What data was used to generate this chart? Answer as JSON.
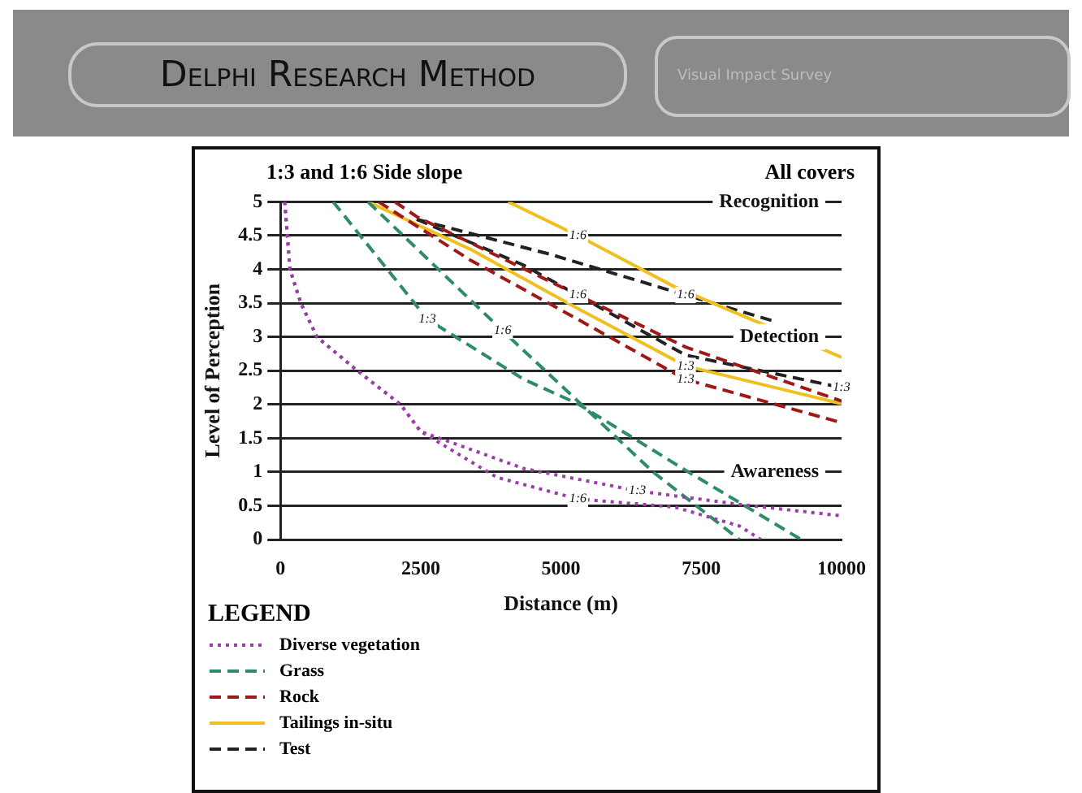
{
  "chart_data": {
    "type": "line",
    "title": "Delphi Research Method",
    "subtitle": "1:3 and 1:6 Side slope",
    "xlabel": "Distance (m)",
    "ylabel": "Level of Perception",
    "legend_title": "LEGEND",
    "legend": "bottom left",
    "grid": "y",
    "marker": "none",
    "xlim": [
      0,
      10000
    ],
    "xticks": [
      0,
      2500,
      5000,
      7500,
      10000
    ],
    "ylim": [
      0,
      5
    ],
    "yticks": [
      0,
      0.5,
      1,
      1.5,
      2,
      2.5,
      3,
      3.5,
      4,
      4.5,
      5
    ],
    "annotations": [
      "Visual Impact Survey",
      "All covers",
      "Recognition",
      "Detection",
      "Awareness",
      {
        "text": "1:6",
        "x": 5300,
        "y": 4.5
      },
      {
        "text": "1:6",
        "x": 7220,
        "y": 3.62
      },
      {
        "text": "1:6",
        "x": 5300,
        "y": 3.62
      },
      {
        "text": "1:3",
        "x": 7220,
        "y": 2.57
      },
      {
        "text": "1:3",
        "x": 10000,
        "y": 2.25
      },
      {
        "text": "1:3",
        "x": 7220,
        "y": 2.37
      },
      {
        "text": "1:6",
        "x": 3960,
        "y": 3.09
      },
      {
        "text": "1:3",
        "x": 2620,
        "y": 3.26
      },
      {
        "text": "1:3",
        "x": 6360,
        "y": 0.72
      },
      {
        "text": "1:6",
        "x": 5300,
        "y": 0.6
      }
    ],
    "series": [
      {
        "name": "Diverse vegetation",
        "color": "#9b3fa8",
        "line_style": "dotted",
        "x": [
          77,
          170,
          364,
          650,
          1370,
          2140,
          2500,
          4340,
          6360,
          8180,
          10000
        ],
        "values": [
          5,
          4,
          3.5,
          3,
          2.5,
          2,
          1.6,
          1.05,
          0.72,
          0.52,
          0.35
        ]
      },
      {
        "color": "#9b3fa8",
        "line_style": "dotted",
        "x": [
          77,
          170,
          364,
          650,
          1370,
          2140,
          2500,
          3860,
          5300,
          7030,
          8180,
          8560
        ],
        "values": [
          5,
          4,
          3.5,
          3,
          2.5,
          2,
          1.6,
          0.92,
          0.6,
          0.48,
          0.2,
          0
        ]
      },
      {
        "name": "Grass",
        "color": "#2e8b6b",
        "line_style": "dashed",
        "x": [
          940,
          2620,
          4340,
          5300,
          7270,
          9280
        ],
        "values": [
          5,
          3.26,
          2.37,
          2.01,
          1,
          0
        ]
      },
      {
        "color": "#2e8b6b",
        "line_style": "dashed",
        "x": [
          1560,
          3960,
          5300,
          6640,
          8180
        ],
        "values": [
          5,
          3.09,
          2.05,
          1,
          0
        ]
      },
      {
        "name": "Rock",
        "color": "#a01818",
        "line_style": "dashed",
        "x": [
          1750,
          3380,
          5300,
          7220,
          10000
        ],
        "values": [
          5,
          4.14,
          3.26,
          2.37,
          1.73
        ]
      },
      {
        "color": "#a01818",
        "line_style": "dashed",
        "x": [
          2040,
          2430,
          5300,
          7220,
          10000
        ],
        "values": [
          5,
          4.78,
          3.62,
          2.85,
          2.05
        ]
      },
      {
        "name": "Tailings in-situ",
        "color": "#f0c020",
        "line_style": "solid",
        "x": [
          1560,
          3380,
          5300,
          7220,
          10000
        ],
        "values": [
          5,
          4.3,
          3.42,
          2.57,
          2.01
        ]
      },
      {
        "color": "#f0c020",
        "line_style": "solid",
        "x": [
          4060,
          5300,
          7030,
          8270,
          10000
        ],
        "values": [
          5,
          4.5,
          3.74,
          3.3,
          2.7
        ]
      },
      {
        "name": "Test",
        "color": "#222222",
        "line_style": "dashed",
        "x": [
          2430,
          4340,
          7220,
          10000
        ],
        "values": [
          4.74,
          4.06,
          2.73,
          2.25
        ]
      },
      {
        "color": "#222222",
        "line_style": "dashed",
        "x": [
          2430,
          4820,
          7220,
          8850
        ],
        "values": [
          4.74,
          4.22,
          3.62,
          3.22
        ]
      }
    ]
  }
}
